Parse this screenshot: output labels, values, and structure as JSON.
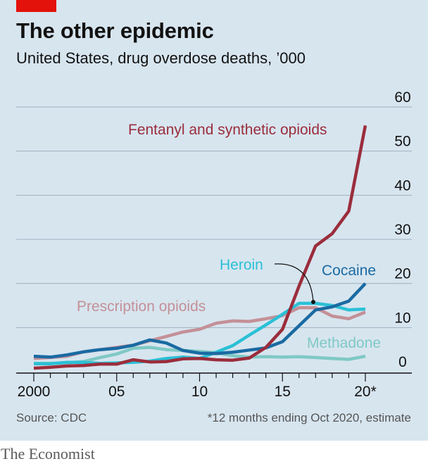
{
  "header": {
    "title": "The other epidemic",
    "subtitle": "United States, drug overdose deaths, ’000"
  },
  "footer": {
    "source": "Source: CDC",
    "footnote": "*12 months ending Oct 2020, estimate",
    "brand": "The Economist"
  },
  "colors": {
    "background": "#d7e5ef",
    "grid": "#9fb1bf",
    "brand_red": "#e3120b",
    "fentanyl": "#9b2d3c",
    "heroin": "#2bc0d6",
    "cocaine": "#1a6aa2",
    "prescription": "#c49097",
    "methadone": "#7fc9c5"
  },
  "chart_data": {
    "type": "line",
    "title": "The other epidemic",
    "subtitle": "United States, drug overdose deaths, ’000",
    "x_ticks": [
      "2000",
      "05",
      "10",
      "15",
      "20*"
    ],
    "y_ticks": [
      "0",
      "10",
      "20",
      "30",
      "40",
      "50",
      "60"
    ],
    "xlim": [
      2000,
      2020
    ],
    "ylim": [
      0,
      60
    ],
    "grid": true,
    "y_axis_position": "right",
    "x": [
      2000,
      2001,
      2002,
      2003,
      2004,
      2005,
      2006,
      2007,
      2008,
      2009,
      2010,
      2011,
      2012,
      2013,
      2014,
      2015,
      2016,
      2017,
      2018,
      2019,
      2020
    ],
    "series": [
      {
        "name": "Fentanyl and synthetic opioids",
        "color_key": "fentanyl",
        "values": [
          0.8,
          1.0,
          1.3,
          1.4,
          1.7,
          1.7,
          2.7,
          2.2,
          2.3,
          2.9,
          3.0,
          2.7,
          2.6,
          3.1,
          5.5,
          9.6,
          19.4,
          28.5,
          31.3,
          36.4,
          55.8
        ]
      },
      {
        "name": "Heroin",
        "color_key": "heroin",
        "values": [
          1.8,
          1.8,
          2.1,
          2.1,
          1.9,
          2.0,
          2.1,
          2.4,
          3.0,
          3.3,
          3.0,
          4.4,
          5.9,
          8.3,
          10.6,
          13.0,
          15.5,
          15.5,
          15.0,
          14.0,
          14.2
        ]
      },
      {
        "name": "Cocaine",
        "color_key": "cocaine",
        "values": [
          3.5,
          3.3,
          3.8,
          4.5,
          5.0,
          5.3,
          6.0,
          7.2,
          6.5,
          4.8,
          4.2,
          4.1,
          4.4,
          4.9,
          5.4,
          6.8,
          10.4,
          14.0,
          14.7,
          16.0,
          20.0
        ]
      },
      {
        "name": "Prescription opioids",
        "color_key": "prescription",
        "values": [
          3.0,
          3.2,
          3.5,
          4.5,
          5.0,
          5.5,
          6.0,
          7.0,
          8.0,
          9.0,
          9.6,
          11.0,
          11.5,
          11.4,
          12.0,
          12.7,
          14.5,
          14.5,
          12.6,
          12.0,
          13.5
        ]
      },
      {
        "name": "Methadone",
        "color_key": "methadone",
        "values": [
          1.9,
          1.9,
          2.0,
          2.3,
          3.2,
          4.0,
          5.3,
          5.5,
          5.0,
          4.8,
          4.6,
          4.3,
          3.6,
          3.3,
          3.4,
          3.3,
          3.4,
          3.2,
          3.0,
          2.8,
          3.5
        ]
      }
    ],
    "annotations": [
      {
        "text": "Fentanyl and synthetic opioids",
        "series": "Fentanyl and synthetic opioids"
      },
      {
        "text": "Heroin",
        "series": "Heroin"
      },
      {
        "text": "Cocaine",
        "series": "Cocaine"
      },
      {
        "text": "Prescription opioids",
        "series": "Prescription opioids"
      },
      {
        "text": "Methadone",
        "series": "Methadone"
      }
    ]
  }
}
